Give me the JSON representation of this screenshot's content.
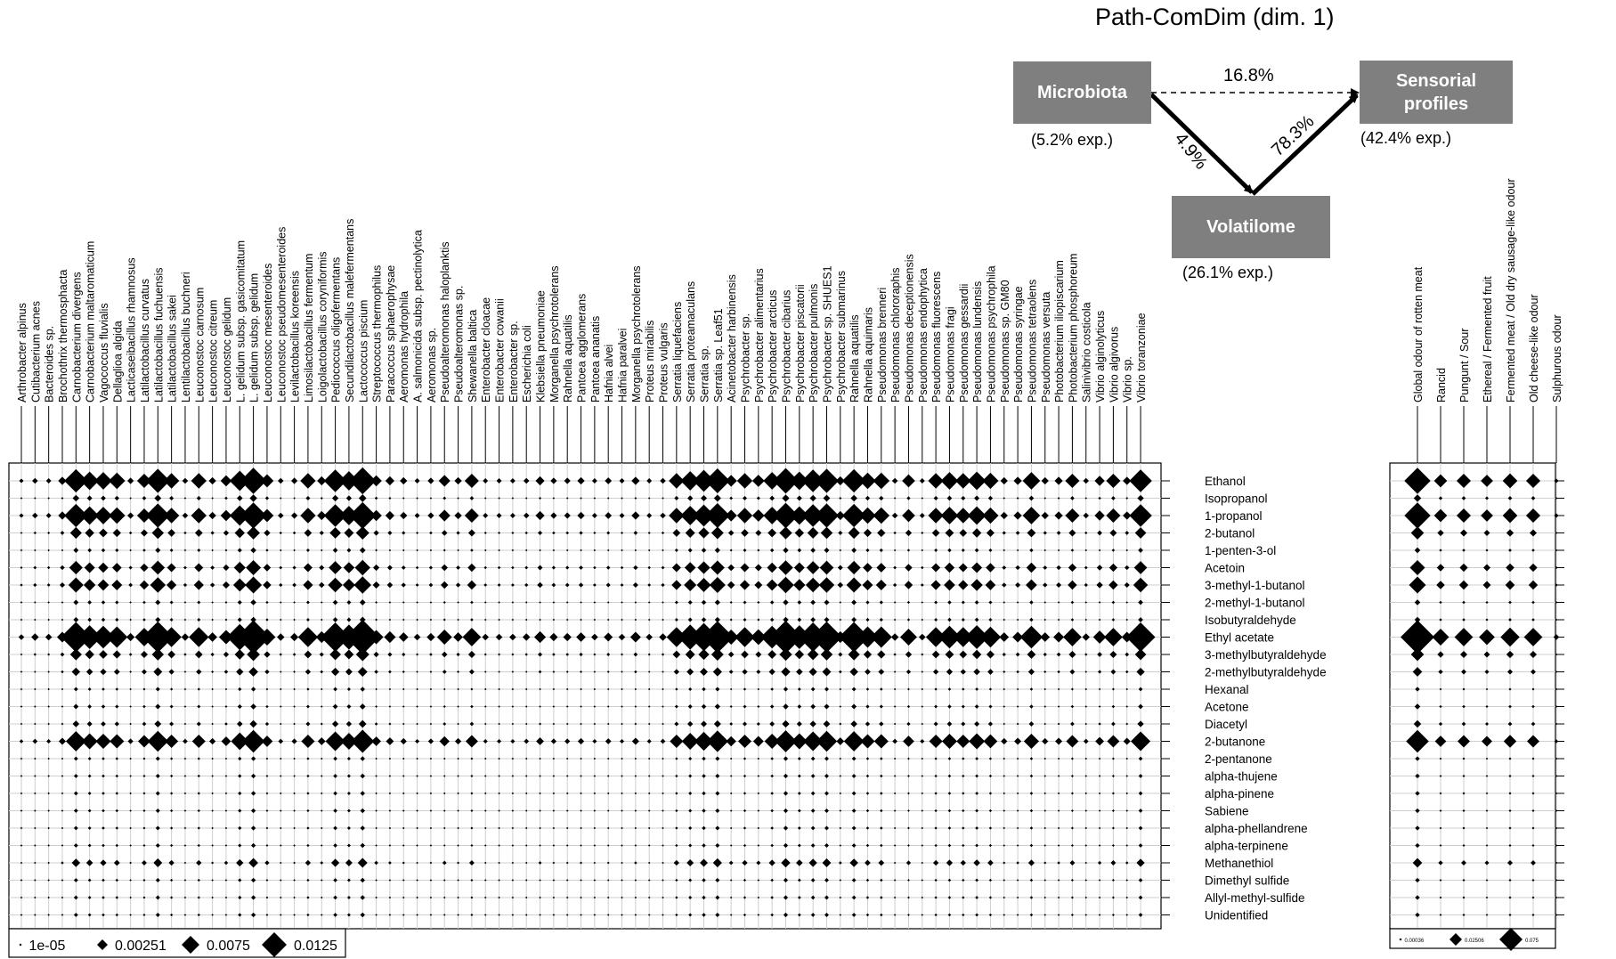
{
  "diagram": {
    "title": "Path-ComDim (dim. 1)",
    "nodes": {
      "microbiota": {
        "label": "Microbiota",
        "explained": "(5.2% exp.)"
      },
      "sensorial": {
        "label_line1": "Sensorial",
        "label_line2": "profiles",
        "explained": "(42.4% exp.)"
      },
      "volatilome": {
        "label": "Volatilome",
        "explained": "(26.1% exp.)"
      }
    },
    "paths": {
      "microbiota_to_sensorial": "16.8%",
      "microbiota_to_volatilome": "4.9%",
      "volatilome_to_sensorial": "78.3%"
    }
  },
  "chart_data": [
    {
      "type": "heatmap",
      "marker": "diamond",
      "columns": [
        "Arthrobacter alpinus",
        "Cutibacterium acnes",
        "Bacteroides sp.",
        "Brochothrix thermosphacta",
        "Carnobacterium divergens",
        "Carnobacterium maltaromaticum",
        "Vagococcus fluvialis",
        "Dellaglioa algida",
        "Lacticaseibacillus rhamnosus",
        "Latilactobacillus curvatus",
        "Latilactobacillus fuchuensis",
        "Latilactobacillus sakei",
        "Lentilactobacillus buchneri",
        "Leuconostoc carnosum",
        "Leuconostoc citreum",
        "Leuconostoc gelidum",
        "L. gelidum subsp. gasicomitatum",
        "L. gelidum subsp. gelidum",
        "Leuconostoc mesenteroides",
        "Leuconostoc pseudomesenteroides",
        "Levilactobacillus koreensis",
        "Limosilactobacillus fermentum",
        "Loigolactobacillus coryniformis",
        "Pediococcus oligofermentans",
        "Secundilactobacillus malefermentans",
        "Lactococcus piscium",
        "Streptococcus thermophilus",
        "Paracoccus sphaerophysae",
        "Aeromonas hydrophila",
        "A. salmonicida subsp. pectinolytica",
        "Aeromonas sp.",
        "Pseudoalteromonas haloplanktis",
        "Pseudoalteromonas sp.",
        "Shewanella baltica",
        "Enterobacter cloacae",
        "Enterobacter cowanii",
        "Enterobacter sp.",
        "Escherichia coli",
        "Klebsiella pneumoniae",
        "Morganella psychrotolerans",
        "Rahnella aquatilis",
        "Pantoea agglomerans",
        "Pantoea ananatis",
        "Hafnia alvei",
        "Hafnia paralvei",
        "Morganella psychrotolerans",
        "Proteus mirabilis",
        "Proteus vulgaris",
        "Serratia liquefaciens",
        "Serratia proteamaculans",
        "Serratia sp.",
        "Serratia sp. Leaf51",
        "Acinetobacter harbinensis",
        "Psychrobacter sp.",
        "Psychrobacter alimentarius",
        "Psychrobacter arcticus",
        "Psychrobacter cibarius",
        "Psychrobacter piscatorii",
        "Psychrobacter pulmonis",
        "Psychrobacter sp. SHUES1",
        "Psychrobacter submarinus",
        "Rahnella aquatilis",
        "Rahnella aquimaris",
        "Pseudomonas brenneri",
        "Pseudomonas chlororaphis",
        "Pseudomonas deceptionensis",
        "Pseudomonas endophytica",
        "Pseudomonas fluorescens",
        "Pseudomonas fragi",
        "Pseudomonas gessardii",
        "Pseudomonas lundensis",
        "Pseudomonas psychrophila",
        "Pseudomonas sp. GM80",
        "Pseudomonas syringae",
        "Pseudomonas tetraolens",
        "Pseudomonas versuta",
        "Photobacterium iliopiscarium",
        "Photobacterium phosphoreum",
        "Salinivibrio costicola",
        "Vibrio alginolyticus",
        "Vibrio algivorus",
        "Vibrio sp.",
        "Vibrio toranzoniae"
      ],
      "rows": [
        "Ethanol",
        "Isopropanol",
        "1-propanol",
        "2-butanol",
        "1-penten-3-ol",
        "Acetoin",
        "3-methyl-1-butanol",
        "2-methyl-1-butanol",
        "Isobutyraldehyde",
        "Ethyl acetate",
        "3-methylbutyraldehyde",
        "2-methylbutyraldehyde",
        "Hexanal",
        "Acetone",
        "Diacetyl",
        "2-butanone",
        "2-pentanone",
        "alpha-thujene",
        "alpha-pinene",
        "Sabiene",
        "alpha-phellandrene",
        "alpha-terpinene",
        "Methanethiol",
        "Dimethyl sulfide",
        "Allyl-methyl-sulfide",
        "Unidentified"
      ],
      "row_weight": [
        0.6,
        0.05,
        0.6,
        0.15,
        0.03,
        0.2,
        0.25,
        0.03,
        0.03,
        1.0,
        0.15,
        0.08,
        0.02,
        0.03,
        0.05,
        0.45,
        0.02,
        0.02,
        0.02,
        0.02,
        0.02,
        0.02,
        0.08,
        0.02,
        0.02,
        0.02
      ],
      "col_weight": [
        0.03,
        0.05,
        0.04,
        0.1,
        0.8,
        0.5,
        0.45,
        0.4,
        0.06,
        0.3,
        0.85,
        0.35,
        0.05,
        0.35,
        0.08,
        0.18,
        0.6,
        1.0,
        0.25,
        0.05,
        0.06,
        0.35,
        0.12,
        0.75,
        0.55,
        1.05,
        0.18,
        0.12,
        0.08,
        0.04,
        0.06,
        0.2,
        0.08,
        0.3,
        0.04,
        0.04,
        0.04,
        0.05,
        0.12,
        0.06,
        0.06,
        0.08,
        0.04,
        0.07,
        0.04,
        0.1,
        0.04,
        0.05,
        0.35,
        0.55,
        0.7,
        0.9,
        0.2,
        0.35,
        0.22,
        0.45,
        0.95,
        0.5,
        0.75,
        0.85,
        0.12,
        0.8,
        0.4,
        0.4,
        0.05,
        0.25,
        0.04,
        0.35,
        0.45,
        0.35,
        0.5,
        0.38,
        0.08,
        0.1,
        0.45,
        0.08,
        0.1,
        0.3,
        0.05,
        0.15,
        0.3,
        0.1,
        0.75
      ],
      "legend": [
        "1e-05",
        "0.00251",
        "0.0075",
        "0.0125"
      ]
    },
    {
      "type": "heatmap",
      "marker": "diamond",
      "columns": [
        "Global odour of rotten meat",
        "Rancid",
        "Pungunt / Sour",
        "Ethereal / Fermented fruit",
        "Fermented meat / Old dry sausage-like odour",
        "Old cheese-like odour",
        "Sulphurous odour"
      ],
      "rows": [
        "Ethanol",
        "Isopropanol",
        "1-propanol",
        "2-butanol",
        "1-penten-3-ol",
        "Acetoin",
        "3-methyl-1-butanol",
        "2-methyl-1-butanol",
        "Isobutyraldehyde",
        "Ethyl acetate",
        "3-methylbutyraldehyde",
        "2-methylbutyraldehyde",
        "Hexanal",
        "Acetone",
        "Diacetyl",
        "2-butanone",
        "2-pentanone",
        "alpha-thujene",
        "alpha-pinene",
        "Sabiene",
        "alpha-phellandrene",
        "alpha-terpinene",
        "Methanethiol",
        "Dimethyl sulfide",
        "Allyl-methyl-sulfide",
        "Unidentified"
      ],
      "row_weight": [
        0.6,
        0.05,
        0.6,
        0.15,
        0.03,
        0.2,
        0.25,
        0.03,
        0.03,
        1.0,
        0.15,
        0.08,
        0.02,
        0.03,
        0.05,
        0.45,
        0.02,
        0.02,
        0.02,
        0.02,
        0.02,
        0.02,
        0.08,
        0.02,
        0.02,
        0.02
      ],
      "col_weight": [
        1.0,
        0.25,
        0.3,
        0.22,
        0.32,
        0.3,
        0.03
      ],
      "legend": [
        "0.00036",
        "0.02506",
        "0.075"
      ]
    }
  ]
}
